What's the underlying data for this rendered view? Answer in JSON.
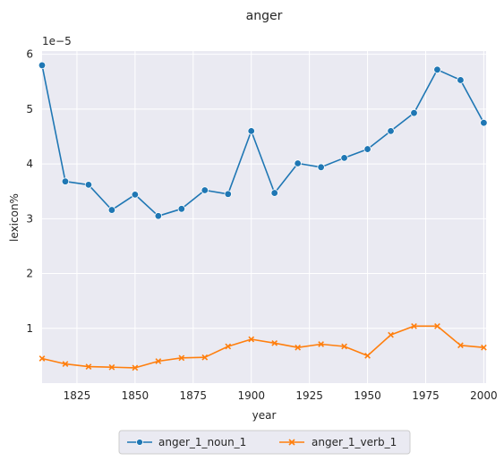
{
  "chart_data": {
    "type": "line",
    "title": "anger",
    "xlabel": "year",
    "ylabel": "lexicon%",
    "y_offset_text": "1e−5",
    "xlim": [
      1810,
      2001
    ],
    "ylim": [
      0,
      6.06
    ],
    "x_ticks": [
      1825,
      1850,
      1875,
      1900,
      1925,
      1950,
      1975,
      2000
    ],
    "y_ticks": [
      1,
      2,
      3,
      4,
      5,
      6
    ],
    "grid": true,
    "legend_position": "bottom-center",
    "x": [
      1810,
      1820,
      1830,
      1840,
      1850,
      1860,
      1870,
      1880,
      1890,
      1900,
      1910,
      1920,
      1930,
      1940,
      1950,
      1960,
      1970,
      1980,
      1990,
      2000
    ],
    "series": [
      {
        "name": "anger_1_noun_1",
        "marker": "circle",
        "color": "#1f77b4",
        "values": [
          5.8,
          3.68,
          3.62,
          3.16,
          3.44,
          3.05,
          3.18,
          3.52,
          3.45,
          4.6,
          3.47,
          4.01,
          3.94,
          4.11,
          4.27,
          4.6,
          4.93,
          5.72,
          5.53,
          4.75
        ]
      },
      {
        "name": "anger_1_verb_1",
        "marker": "x",
        "color": "#ff7f0e",
        "values": [
          0.45,
          0.35,
          0.3,
          0.29,
          0.28,
          0.4,
          0.46,
          0.47,
          0.67,
          0.8,
          0.73,
          0.65,
          0.71,
          0.67,
          0.5,
          0.88,
          1.04,
          1.04,
          0.69,
          0.65
        ]
      }
    ]
  }
}
